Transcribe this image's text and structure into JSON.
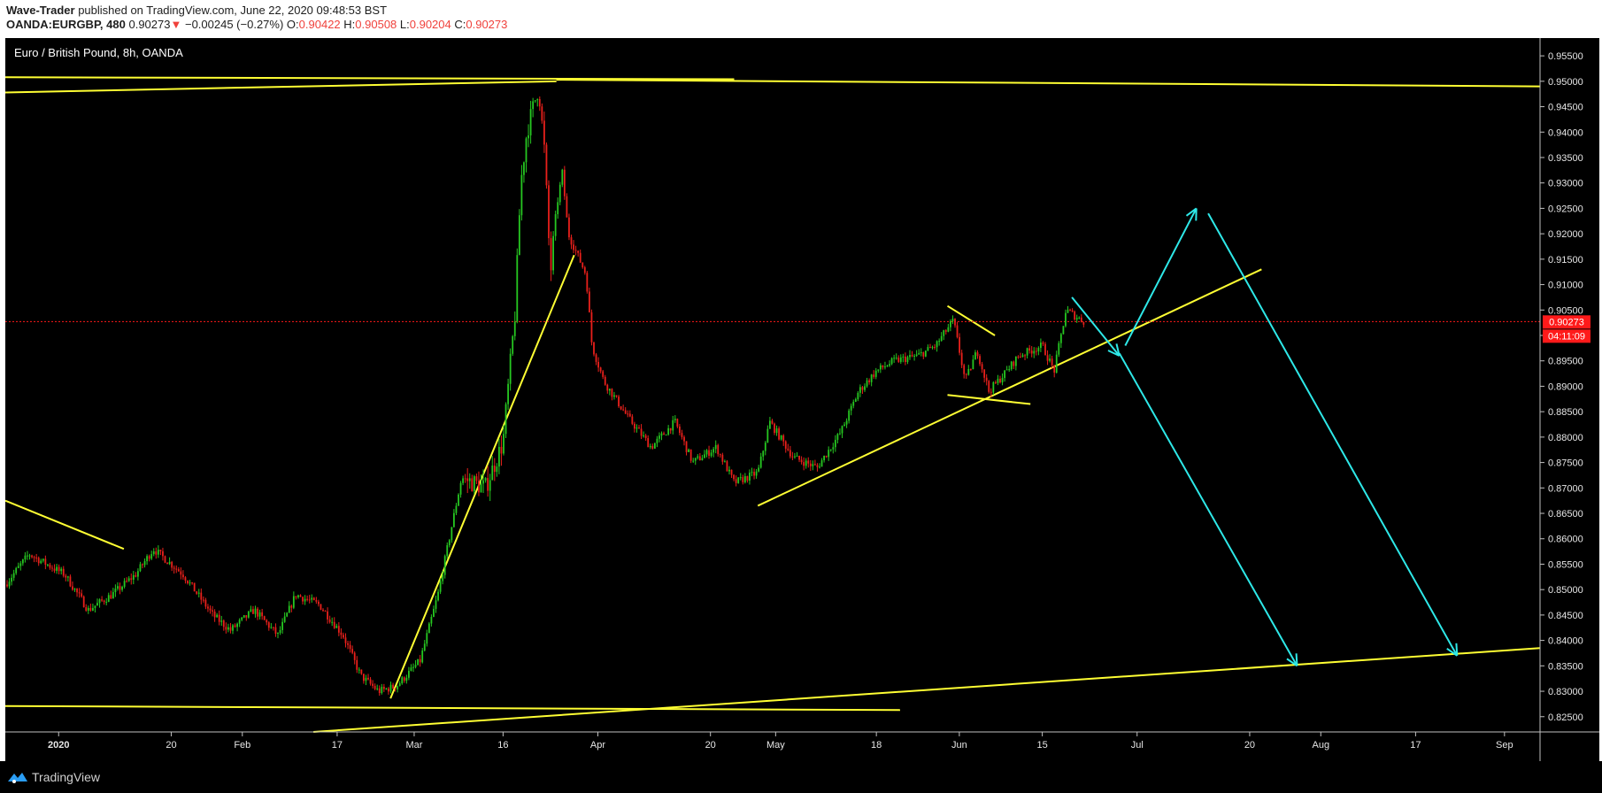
{
  "header": {
    "author": "Wave-Trader",
    "published": "published on TradingView.com, June 22, 2020 09:48:53 BST",
    "symbol": "OANDA:EURGBP, 480",
    "last": "0.90273",
    "arrow": "▼",
    "change": "−0.00245 (−0.27%)",
    "o_label": "O:",
    "o_value": "0.90422",
    "h_label": "H:",
    "h_value": "0.90508",
    "l_label": "L:",
    "l_value": "0.90204",
    "c_label": "C:",
    "c_value": "0.90273"
  },
  "footer": {
    "brand": "TradingView"
  },
  "colors": {
    "up": "#26c721",
    "down": "#e8201b",
    "trend": "#ffff33",
    "projection": "#2ee8e8",
    "last_price": "#ff1a1a",
    "axis_text": "#e6e6e6"
  },
  "chart_data": {
    "type": "candlestick",
    "title": "Euro / British Pound, 8h, OANDA",
    "symbol": "EURGBP",
    "timeframe": "8h",
    "x_ticks": [
      "2020",
      "20",
      "Feb",
      "17",
      "Mar",
      "16",
      "Apr",
      "20",
      "May",
      "18",
      "Jun",
      "15",
      "Jul",
      "20",
      "Aug",
      "17",
      "Sep"
    ],
    "x_tick_dates": [
      "2020-01-01",
      "2020-01-20",
      "2020-02-01",
      "2020-02-17",
      "2020-03-01",
      "2020-03-16",
      "2020-04-01",
      "2020-04-20",
      "2020-05-01",
      "2020-05-18",
      "2020-06-01",
      "2020-06-15",
      "2020-07-01",
      "2020-07-20",
      "2020-08-01",
      "2020-08-17",
      "2020-09-01"
    ],
    "x_range": [
      "2019-12-23",
      "2020-09-07"
    ],
    "y_ticks": [
      "0.95500",
      "0.95000",
      "0.94500",
      "0.94000",
      "0.93500",
      "0.93000",
      "0.92500",
      "0.92000",
      "0.91500",
      "0.91000",
      "0.90500",
      "0.90000",
      "0.89500",
      "0.89000",
      "0.88500",
      "0.88000",
      "0.87500",
      "0.87000",
      "0.86500",
      "0.86000",
      "0.85500",
      "0.85000",
      "0.84500",
      "0.84000",
      "0.83500",
      "0.83000",
      "0.82500"
    ],
    "ylim": [
      0.822,
      0.9585
    ],
    "last_price": {
      "value": 0.90273,
      "label": "0.90273",
      "countdown": "04:11:09"
    },
    "price_path": [
      [
        "2019-12-23",
        0.851
      ],
      [
        "2019-12-27",
        0.857
      ],
      [
        "2020-01-02",
        0.853
      ],
      [
        "2020-01-06",
        0.846
      ],
      [
        "2020-01-10",
        0.849
      ],
      [
        "2020-01-14",
        0.853
      ],
      [
        "2020-01-17",
        0.858
      ],
      [
        "2020-01-22",
        0.853
      ],
      [
        "2020-01-27",
        0.845
      ],
      [
        "2020-01-30",
        0.842
      ],
      [
        "2020-02-03",
        0.846
      ],
      [
        "2020-02-07",
        0.841
      ],
      [
        "2020-02-10",
        0.849
      ],
      [
        "2020-02-14",
        0.847
      ],
      [
        "2020-02-18",
        0.841
      ],
      [
        "2020-02-21",
        0.833
      ],
      [
        "2020-02-24",
        0.83
      ],
      [
        "2020-02-27",
        0.831
      ],
      [
        "2020-03-02",
        0.836
      ],
      [
        "2020-03-05",
        0.849
      ],
      [
        "2020-03-09",
        0.872
      ],
      [
        "2020-03-13",
        0.87
      ],
      [
        "2020-03-16",
        0.879
      ],
      [
        "2020-03-18",
        0.904
      ],
      [
        "2020-03-19",
        0.93
      ],
      [
        "2020-03-20",
        0.94
      ],
      [
        "2020-03-22",
        0.949
      ],
      [
        "2020-03-23",
        0.936
      ],
      [
        "2020-03-24",
        0.912
      ],
      [
        "2020-03-25",
        0.925
      ],
      [
        "2020-03-26",
        0.932
      ],
      [
        "2020-03-27",
        0.92
      ],
      [
        "2020-03-30",
        0.912
      ],
      [
        "2020-03-31",
        0.898
      ],
      [
        "2020-04-02",
        0.891
      ],
      [
        "2020-04-06",
        0.884
      ],
      [
        "2020-04-10",
        0.878
      ],
      [
        "2020-04-14",
        0.883
      ],
      [
        "2020-04-17",
        0.875
      ],
      [
        "2020-04-21",
        0.878
      ],
      [
        "2020-04-24",
        0.871
      ],
      [
        "2020-04-28",
        0.873
      ],
      [
        "2020-04-30",
        0.883
      ],
      [
        "2020-05-04",
        0.876
      ],
      [
        "2020-05-08",
        0.874
      ],
      [
        "2020-05-12",
        0.881
      ],
      [
        "2020-05-15",
        0.889
      ],
      [
        "2020-05-18",
        0.893
      ],
      [
        "2020-05-21",
        0.895
      ],
      [
        "2020-05-25",
        0.896
      ],
      [
        "2020-05-28",
        0.898
      ],
      [
        "2020-05-31",
        0.903
      ],
      [
        "2020-06-02",
        0.891
      ],
      [
        "2020-06-04",
        0.897
      ],
      [
        "2020-06-06",
        0.889
      ],
      [
        "2020-06-09",
        0.893
      ],
      [
        "2020-06-11",
        0.896
      ],
      [
        "2020-06-15",
        0.898
      ],
      [
        "2020-06-17",
        0.893
      ],
      [
        "2020-06-19",
        0.905
      ],
      [
        "2020-06-22",
        0.90273
      ]
    ],
    "trend_lines": [
      [
        [
          "2019-12-23",
          0.9508
        ],
        [
          "2020-04-24",
          0.9504
        ]
      ],
      [
        [
          "2019-12-23",
          0.9478
        ],
        [
          "2020-03-25",
          0.95
        ]
      ],
      [
        [
          "2020-03-25",
          0.9503
        ],
        [
          "2020-09-07",
          0.949
        ]
      ],
      [
        [
          "2019-12-23",
          0.8675
        ],
        [
          "2020-01-12",
          0.858
        ]
      ],
      [
        [
          "2020-02-26",
          0.8286
        ],
        [
          "2020-03-28",
          0.9158
        ]
      ],
      [
        [
          "2019-12-23",
          0.8271
        ],
        [
          "2020-05-22",
          0.8263
        ]
      ],
      [
        [
          "2020-02-13",
          0.822
        ],
        [
          "2020-09-07",
          0.8385
        ]
      ],
      [
        [
          "2020-04-28",
          0.8665
        ],
        [
          "2020-07-22",
          0.913
        ]
      ],
      [
        [
          "2020-05-30",
          0.8883
        ],
        [
          "2020-06-13",
          0.8865
        ]
      ],
      [
        [
          "2020-05-30",
          0.9058
        ],
        [
          "2020-06-07",
          0.9
        ]
      ]
    ],
    "projection_arrows": [
      [
        [
          "2020-06-20",
          0.9075
        ],
        [
          "2020-06-28",
          0.896
        ]
      ],
      [
        [
          "2020-06-29",
          0.898
        ],
        [
          "2020-07-11",
          0.925
        ]
      ],
      [
        [
          "2020-06-28",
          0.8965
        ],
        [
          "2020-07-28",
          0.835
        ]
      ],
      [
        [
          "2020-07-13",
          0.924
        ],
        [
          "2020-08-24",
          0.837
        ]
      ]
    ]
  }
}
